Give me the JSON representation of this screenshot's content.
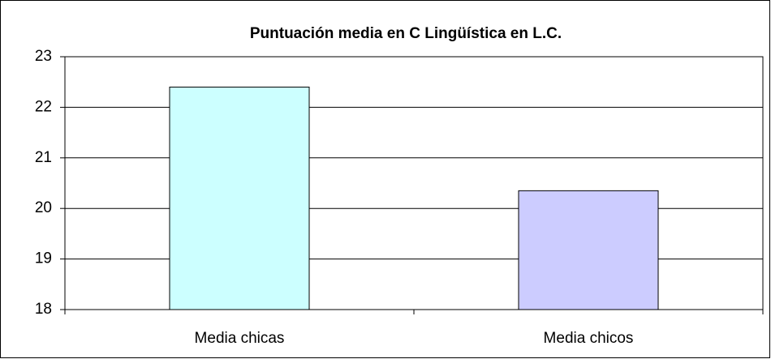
{
  "chart_data": {
    "type": "bar",
    "title": "Puntuación media en C Lingüística en L.C.",
    "categories": [
      "Media chicas",
      "Media chicos"
    ],
    "values": [
      22.4,
      20.35
    ],
    "colors": [
      "#ccffff",
      "#ccccff"
    ],
    "ylim": [
      18,
      23
    ],
    "yticks": [
      18,
      19,
      20,
      21,
      22,
      23
    ],
    "grid": true
  }
}
